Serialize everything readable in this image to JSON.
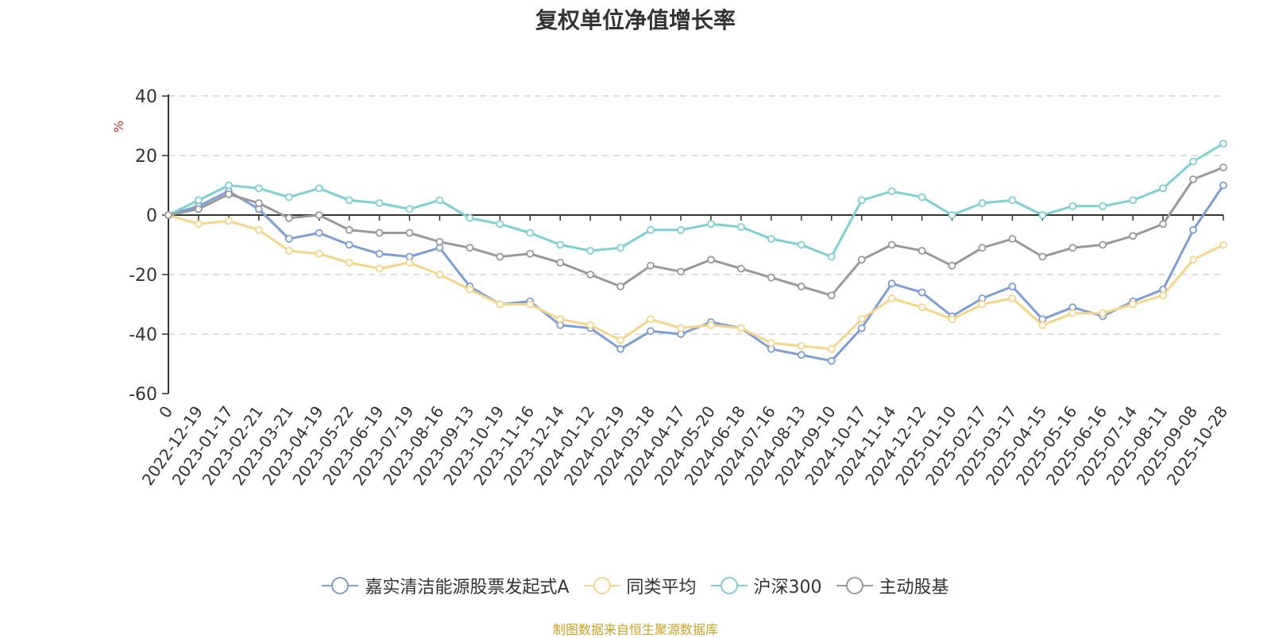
{
  "title": "复权单位净值增长率",
  "source": "制图数据来自恒生聚源数据库",
  "chart_data": {
    "type": "line",
    "title": "复权单位净值增长率",
    "ylabel": "%",
    "ylim": [
      -60,
      40
    ],
    "yticks": [
      -60,
      -40,
      -20,
      0,
      20,
      40
    ],
    "grid": true,
    "legend_position": "bottom",
    "x_labels": [
      "0",
      "2022-12-19",
      "2023-01-17",
      "2023-02-21",
      "2023-03-21",
      "2023-04-19",
      "2023-05-22",
      "2023-06-19",
      "2023-07-19",
      "2023-08-16",
      "2023-09-13",
      "2023-10-19",
      "2023-11-16",
      "2023-12-14",
      "2024-01-12",
      "2024-02-19",
      "2024-03-18",
      "2024-04-17",
      "2024-05-20",
      "2024-06-18",
      "2024-07-16",
      "2024-08-13",
      "2024-09-10",
      "2024-10-17",
      "2024-11-14",
      "2024-12-12",
      "2025-01-10",
      "2025-02-17",
      "2025-03-17",
      "2025-04-15",
      "2025-05-16",
      "2025-06-16",
      "2025-07-14",
      "2025-08-11",
      "2025-09-08",
      "2025-10-28"
    ],
    "series": [
      {
        "name": "嘉实清洁能源股票发起式A",
        "color": "#7b9fd4",
        "values": [
          0,
          3,
          8,
          2,
          -8,
          -6,
          -10,
          -13,
          -14,
          -11,
          -24,
          -30,
          -29,
          -37,
          -38,
          -45,
          -39,
          -40,
          -36,
          -38,
          -45,
          -47,
          -49,
          -38,
          -23,
          -26,
          -34,
          -28,
          -24,
          -35,
          -31,
          -34,
          -29,
          -25,
          -5,
          10
        ]
      },
      {
        "name": "同类平均",
        "color": "#f7d48a",
        "values": [
          0,
          -3,
          -2,
          -5,
          -12,
          -13,
          -16,
          -18,
          -16,
          -20,
          -25,
          -30,
          -30,
          -35,
          -37,
          -42,
          -35,
          -38,
          -37,
          -38,
          -43,
          -44,
          -45,
          -35,
          -28,
          -31,
          -35,
          -30,
          -28,
          -37,
          -33,
          -33,
          -30,
          -27,
          -15,
          -10
        ]
      },
      {
        "name": "沪深300",
        "color": "#7fcfd4",
        "values": [
          0,
          5,
          10,
          9,
          6,
          9,
          5,
          4,
          2,
          5,
          -1,
          -3,
          -6,
          -10,
          -12,
          -11,
          -5,
          -5,
          -3,
          -4,
          -8,
          -10,
          -14,
          5,
          8,
          6,
          0,
          4,
          5,
          0,
          3,
          3,
          5,
          9,
          18,
          24
        ]
      },
      {
        "name": "主动股基",
        "color": "#999999",
        "values": [
          0,
          2,
          7,
          4,
          -1,
          0,
          -5,
          -6,
          -6,
          -9,
          -11,
          -14,
          -13,
          -16,
          -20,
          -24,
          -17,
          -19,
          -15,
          -18,
          -21,
          -24,
          -27,
          -15,
          -10,
          -12,
          -17,
          -11,
          -8,
          -14,
          -11,
          -10,
          -7,
          -3,
          12,
          16
        ]
      }
    ]
  }
}
